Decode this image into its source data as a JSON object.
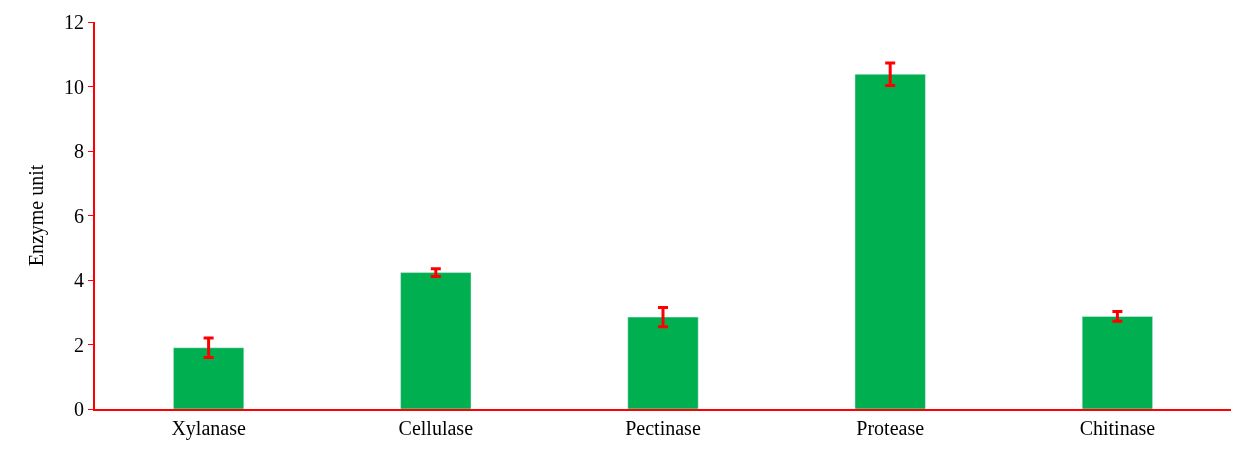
{
  "chart_data": {
    "type": "bar",
    "ylabel": "Enzyme unit",
    "categories": [
      "Xylanase",
      "Cellulase",
      "Pectinase",
      "Protease",
      "Chitinase"
    ],
    "values": [
      1.9,
      4.23,
      2.85,
      10.38,
      2.87
    ],
    "errors": [
      0.3,
      0.12,
      0.3,
      0.35,
      0.15
    ],
    "color": "#00b050",
    "ylim": [
      0,
      12
    ],
    "yticks": [
      0,
      2,
      4,
      6,
      8,
      10,
      12
    ]
  }
}
